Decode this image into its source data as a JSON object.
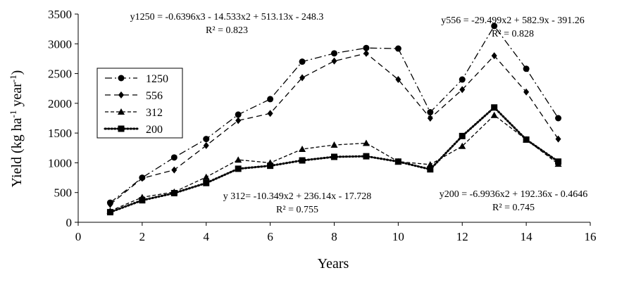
{
  "chart_data": {
    "type": "line",
    "xlabel": "Years",
    "ylabel": "Yield (kg ha-1 year-1)",
    "ylabel_parts": {
      "main": "Yield (kg ha",
      "sup1": "-1",
      "mid": " year",
      "sup2": "-1",
      "end": ")"
    },
    "xlim": [
      0,
      16
    ],
    "ylim": [
      0,
      3500
    ],
    "x_ticks": [
      0,
      2,
      4,
      6,
      8,
      10,
      12,
      14,
      16
    ],
    "y_ticks": [
      0,
      500,
      1000,
      1500,
      2000,
      2500,
      3000,
      3500
    ],
    "grid": false,
    "legend_position": "left",
    "x": [
      1,
      2,
      3,
      4,
      5,
      6,
      7,
      8,
      9,
      10,
      11,
      12,
      13,
      14,
      15
    ],
    "series": [
      {
        "name": "1250",
        "marker": "circle",
        "dash": "dashdot",
        "values": [
          330,
          750,
          1090,
          1400,
          1810,
          2070,
          2700,
          2840,
          2930,
          2920,
          1850,
          2400,
          3300,
          2580,
          1750
        ]
      },
      {
        "name": "556",
        "marker": "diamond",
        "dash": "dashed",
        "values": [
          300,
          740,
          880,
          1290,
          1710,
          1830,
          2430,
          2710,
          2840,
          2400,
          1750,
          2230,
          2800,
          2190,
          1400
        ]
      },
      {
        "name": "312",
        "marker": "triangle",
        "dash": "shortdash",
        "values": [
          190,
          420,
          510,
          760,
          1050,
          1000,
          1230,
          1300,
          1330,
          1020,
          970,
          1280,
          1800,
          1390,
          980
        ]
      },
      {
        "name": "200",
        "marker": "square",
        "dash": "dotted",
        "values": [
          170,
          370,
          490,
          660,
          900,
          950,
          1040,
          1100,
          1110,
          1020,
          890,
          1450,
          1930,
          1390,
          1020
        ]
      }
    ],
    "annotations": [
      {
        "id": "eq1250",
        "line1": "y1250 = -0.6396x3 - 14.533x2 + 513.13x - 248.3",
        "line2": "R² = 0.823"
      },
      {
        "id": "eq556",
        "line1": "y556 = -29.499x2 + 582.9x - 391.26",
        "line2": "R² = 0.828"
      },
      {
        "id": "eq312",
        "line1": "y 312= -10.349x2 + 236.14x - 17.728",
        "line2": "R² = 0.755"
      },
      {
        "id": "eq200",
        "line1": "y200 = -6.9936x2 + 192.36x - 0.4646",
        "line2": "R² = 0.745"
      }
    ]
  }
}
